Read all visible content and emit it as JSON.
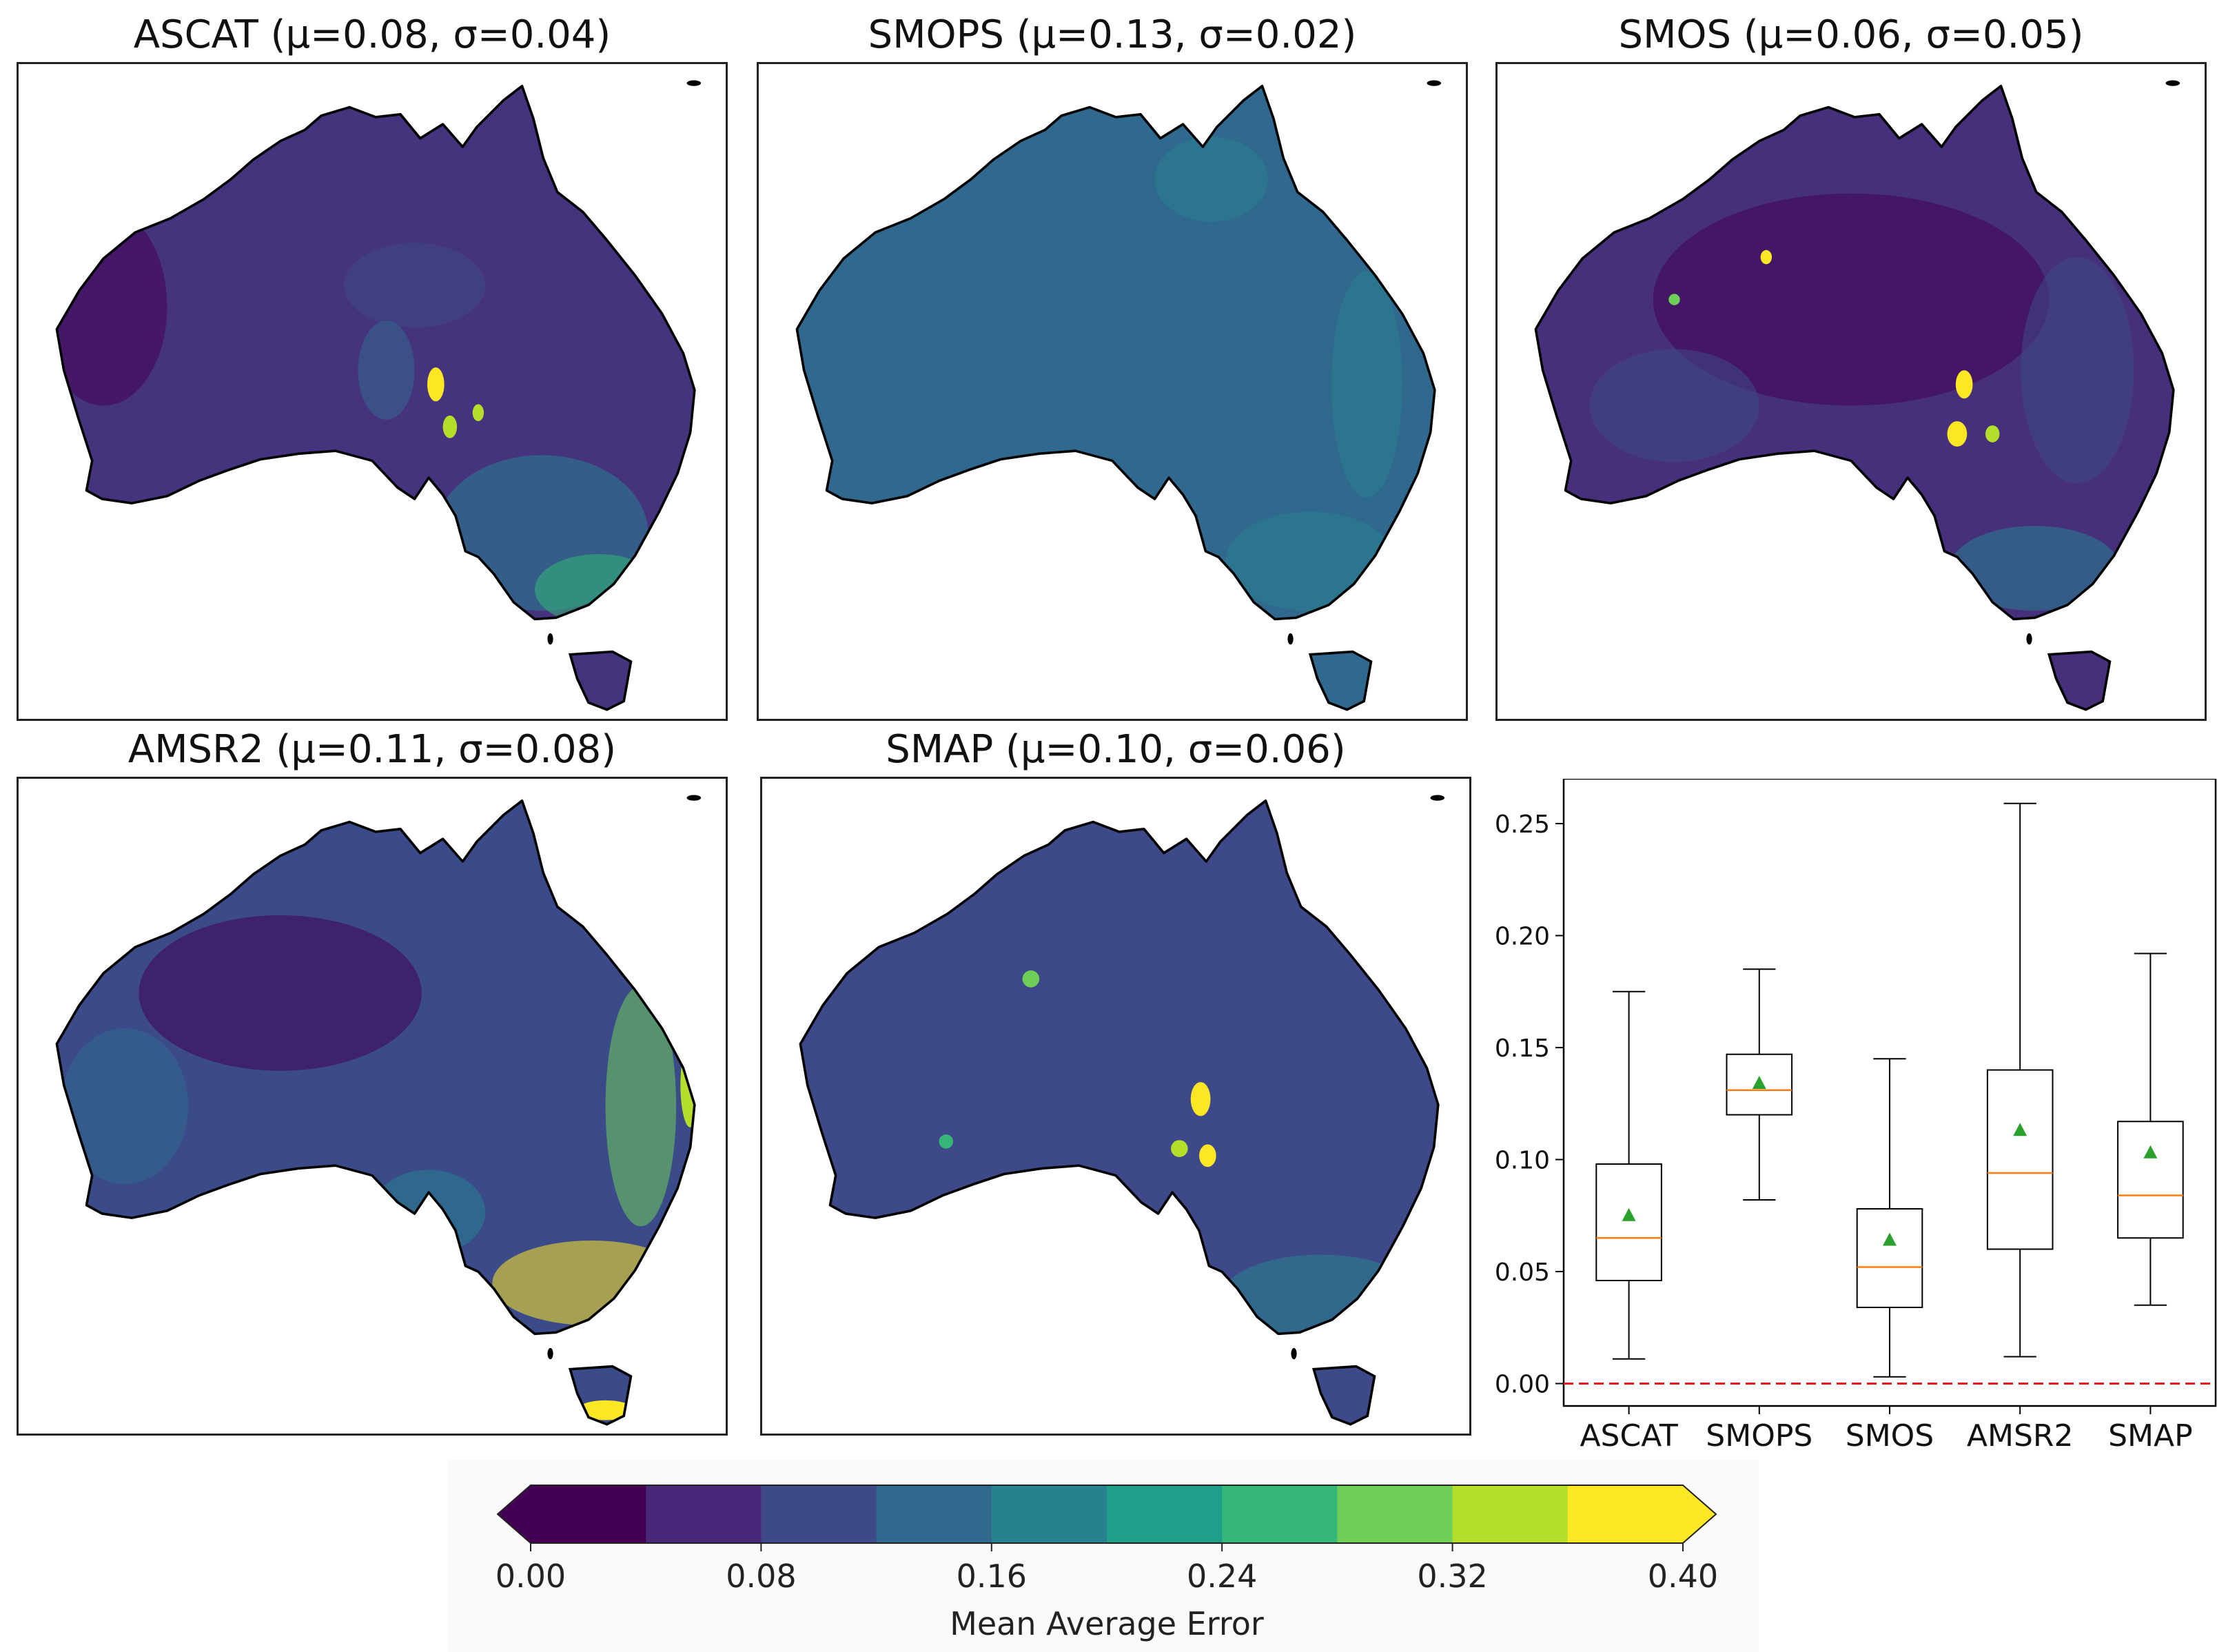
{
  "colors": {
    "viridis": [
      "#440154",
      "#482878",
      "#3e4989",
      "#31688e",
      "#26828e",
      "#1f9e89",
      "#35b779",
      "#6ece58",
      "#b5de2b",
      "#fde725"
    ],
    "coastline": "#000000",
    "box": "#000000",
    "median": "#ff7f0e",
    "mean_marker": "#2ca02c",
    "zero_line": "#e41a1c"
  },
  "maps": [
    {
      "id": "ascat",
      "title": "ASCAT (μ=0.08,  σ=0.04)",
      "base_color": "#45337e"
    },
    {
      "id": "smops",
      "title": "SMOPS (μ=0.13,  σ=0.02)",
      "base_color": "#31688e"
    },
    {
      "id": "smos",
      "title": "SMOS (μ=0.06,  σ=0.05)",
      "base_color": "#46307c"
    },
    {
      "id": "amsr2",
      "title": "AMSR2 (μ=0.11,  σ=0.08)",
      "base_color": "#3b4b8a"
    },
    {
      "id": "smap",
      "title": "SMAP (μ=0.10,  σ=0.06)",
      "base_color": "#3e4989"
    }
  ],
  "chart_data": [
    {
      "type": "box",
      "categories": [
        "ASCAT",
        "SMOPS",
        "SMOS",
        "AMSR2",
        "SMAP"
      ],
      "boxes": [
        {
          "name": "ASCAT",
          "whisker_low": 0.011,
          "q1": 0.046,
          "median": 0.065,
          "q3": 0.098,
          "whisker_high": 0.175,
          "mean": 0.075
        },
        {
          "name": "SMOPS",
          "whisker_low": 0.082,
          "q1": 0.12,
          "median": 0.131,
          "q3": 0.147,
          "whisker_high": 0.185,
          "mean": 0.134
        },
        {
          "name": "SMOS",
          "whisker_low": 0.003,
          "q1": 0.034,
          "median": 0.052,
          "q3": 0.078,
          "whisker_high": 0.145,
          "mean": 0.064
        },
        {
          "name": "AMSR2",
          "whisker_low": 0.012,
          "q1": 0.06,
          "median": 0.094,
          "q3": 0.14,
          "whisker_high": 0.259,
          "mean": 0.113
        },
        {
          "name": "SMAP",
          "whisker_low": 0.035,
          "q1": 0.065,
          "median": 0.084,
          "q3": 0.117,
          "whisker_high": 0.192,
          "mean": 0.103
        }
      ],
      "yticks": [
        "0.00",
        "0.05",
        "0.10",
        "0.15",
        "0.20",
        "0.25"
      ],
      "ytick_values": [
        0.0,
        0.05,
        0.1,
        0.15,
        0.2,
        0.25
      ],
      "ylim": [
        -0.01,
        0.27
      ],
      "reference_line": 0.0
    },
    {
      "type": "colorbar",
      "label": "Mean Average Error",
      "ticks": [
        "0.00",
        "0.08",
        "0.16",
        "0.24",
        "0.32",
        "0.40"
      ],
      "tick_values": [
        0.0,
        0.08,
        0.16,
        0.24,
        0.32,
        0.4
      ],
      "range": [
        0.0,
        0.4
      ],
      "levels": 10,
      "extend": "both"
    }
  ]
}
